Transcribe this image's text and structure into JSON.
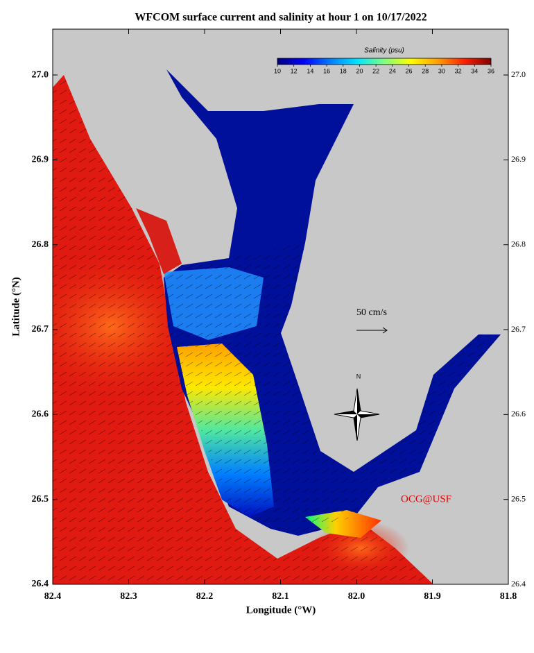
{
  "map": {
    "title": "WFCOM surface current and salinity at hour 1 on 10/17/2022",
    "xlabel": "Longitude (°W)",
    "ylabel": "Latitude (°N)",
    "xlim": [
      82.4,
      81.8
    ],
    "ylim": [
      26.4,
      27.054
    ],
    "xticks": [
      {
        "value": 82.4,
        "label": "82.4"
      },
      {
        "value": 82.3,
        "label": "82.3"
      },
      {
        "value": 82.2,
        "label": "82.2"
      },
      {
        "value": 82.1,
        "label": "82.1"
      },
      {
        "value": 82,
        "label": "82.0"
      },
      {
        "value": 81.9,
        "label": "81.9"
      },
      {
        "value": 81.8,
        "label": "81.8"
      }
    ],
    "yticks": [
      26.4,
      26.5,
      26.6,
      26.7,
      26.8,
      26.9,
      {
        "value": 27,
        "label": "27.0"
      }
    ],
    "colorbar": {
      "label": "Salinity (psu)",
      "range": [
        10,
        36
      ],
      "ticks": [
        10,
        12,
        14,
        16,
        18,
        20,
        22,
        24,
        26,
        28,
        30,
        32,
        34,
        36
      ],
      "colormap": [
        "#00007f",
        "#0000ff",
        "#007fff",
        "#00e5ff",
        "#7fff7f",
        "#ffff00",
        "#ff9f00",
        "#ff2000",
        "#7f0000"
      ]
    },
    "scale_label": "50 cm/s",
    "compass": "N",
    "credit": "OCG@USF"
  }
}
